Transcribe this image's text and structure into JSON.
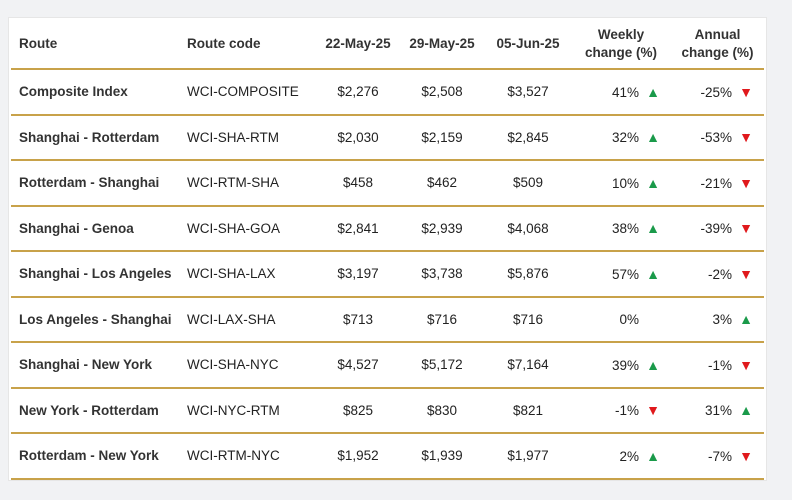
{
  "chart_data": {
    "type": "table",
    "columns": [
      "Route",
      "Route code",
      "22-May-25",
      "29-May-25",
      "05-Jun-25",
      "Weekly change (%)",
      "Annual change (%)"
    ],
    "header_lines": {
      "weekly": [
        "Weekly",
        "change (%)"
      ],
      "annual": [
        "Annual",
        "change (%)"
      ]
    },
    "rows": [
      {
        "route": "Composite Index",
        "code": "WCI-COMPOSITE",
        "d1": "$2,276",
        "d2": "$2,508",
        "d3": "$3,527",
        "weekly": "41%",
        "weekly_dir": "up",
        "annual": "-25%",
        "annual_dir": "down"
      },
      {
        "route": "Shanghai - Rotterdam",
        "code": "WCI-SHA-RTM",
        "d1": "$2,030",
        "d2": "$2,159",
        "d3": "$2,845",
        "weekly": "32%",
        "weekly_dir": "up",
        "annual": "-53%",
        "annual_dir": "down"
      },
      {
        "route": "Rotterdam - Shanghai",
        "code": "WCI-RTM-SHA",
        "d1": "$458",
        "d2": "$462",
        "d3": "$509",
        "weekly": "10%",
        "weekly_dir": "up",
        "annual": "-21%",
        "annual_dir": "down"
      },
      {
        "route": "Shanghai - Genoa",
        "code": "WCI-SHA-GOA",
        "d1": "$2,841",
        "d2": "$2,939",
        "d3": "$4,068",
        "weekly": "38%",
        "weekly_dir": "up",
        "annual": "-39%",
        "annual_dir": "down"
      },
      {
        "route": "Shanghai - Los Angeles",
        "code": "WCI-SHA-LAX",
        "d1": "$3,197",
        "d2": "$3,738",
        "d3": "$5,876",
        "weekly": "57%",
        "weekly_dir": "up",
        "annual": "-2%",
        "annual_dir": "down"
      },
      {
        "route": "Los Angeles - Shanghai",
        "code": "WCI-LAX-SHA",
        "d1": "$713",
        "d2": "$716",
        "d3": "$716",
        "weekly": "0%",
        "weekly_dir": "none",
        "annual": "3%",
        "annual_dir": "up"
      },
      {
        "route": "Shanghai - New York",
        "code": "WCI-SHA-NYC",
        "d1": "$4,527",
        "d2": "$5,172",
        "d3": "$7,164",
        "weekly": "39%",
        "weekly_dir": "up",
        "annual": "-1%",
        "annual_dir": "down"
      },
      {
        "route": "New York - Rotterdam",
        "code": "WCI-NYC-RTM",
        "d1": "$825",
        "d2": "$830",
        "d3": "$821",
        "weekly": "-1%",
        "weekly_dir": "down",
        "annual": "31%",
        "annual_dir": "up"
      },
      {
        "route": "Rotterdam - New York",
        "code": "WCI-RTM-NYC",
        "d1": "$1,952",
        "d2": "$1,939",
        "d3": "$1,977",
        "weekly": "2%",
        "weekly_dir": "up",
        "annual": "-7%",
        "annual_dir": "down"
      }
    ],
    "colors": {
      "rule": "#c8a24a",
      "up": "#1a9a4a",
      "down": "#e0191c"
    }
  }
}
